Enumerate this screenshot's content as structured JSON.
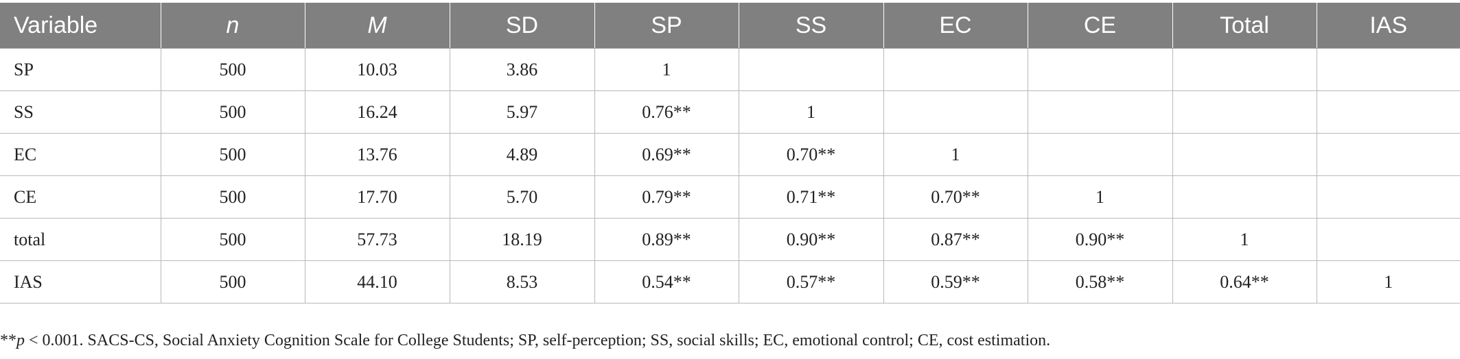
{
  "table": {
    "headers": [
      {
        "label": "Variable",
        "italic": false
      },
      {
        "label": "n",
        "italic": true
      },
      {
        "label": "M",
        "italic": true
      },
      {
        "label": "SD",
        "italic": false
      },
      {
        "label": "SP",
        "italic": false
      },
      {
        "label": "SS",
        "italic": false
      },
      {
        "label": "EC",
        "italic": false
      },
      {
        "label": "CE",
        "italic": false
      },
      {
        "label": "Total",
        "italic": false
      },
      {
        "label": "IAS",
        "italic": false
      }
    ],
    "rows": [
      [
        "SP",
        "500",
        "10.03",
        "3.86",
        "1",
        "",
        "",
        "",
        "",
        ""
      ],
      [
        "SS",
        "500",
        "16.24",
        "5.97",
        "0.76**",
        "1",
        "",
        "",
        "",
        ""
      ],
      [
        "EC",
        "500",
        "13.76",
        "4.89",
        "0.69**",
        "0.70**",
        "1",
        "",
        "",
        ""
      ],
      [
        "CE",
        "500",
        "17.70",
        "5.70",
        "0.79**",
        "0.71**",
        "0.70**",
        "1",
        "",
        ""
      ],
      [
        "total",
        "500",
        "57.73",
        "18.19",
        "0.89**",
        "0.90**",
        "0.87**",
        "0.90**",
        "1",
        ""
      ],
      [
        "IAS",
        "500",
        "44.10",
        "8.53",
        "0.54**",
        "0.57**",
        "0.59**",
        "0.58**",
        "0.64**",
        "1"
      ]
    ]
  },
  "footnote": {
    "prefix": "**",
    "p_symbol": "p",
    "rest": " < 0.001. SACS-CS, Social Anxiety Cognition Scale for College Students; SP, self-perception; SS, social skills; EC, emotional control; CE, cost estimation."
  },
  "colors": {
    "header_bg": "#808080",
    "header_text": "#ffffff",
    "grid": "#b8b8b8"
  }
}
